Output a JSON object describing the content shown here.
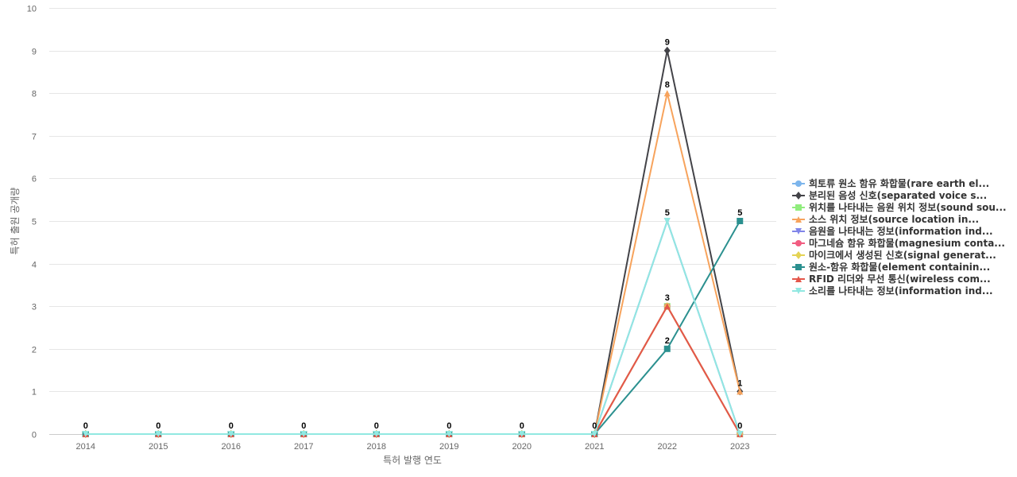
{
  "chart_data": {
    "type": "line",
    "title": "",
    "xlabel": "특허 발행 연도",
    "ylabel": "특허 출원 공개량",
    "ylim": [
      0,
      10
    ],
    "yticks": [
      0,
      1,
      2,
      3,
      4,
      5,
      6,
      7,
      8,
      9,
      10
    ],
    "x": [
      "2014",
      "2015",
      "2016",
      "2017",
      "2018",
      "2019",
      "2020",
      "2021",
      "2022",
      "2023"
    ],
    "grid": true,
    "legend_position": "right",
    "series": [
      {
        "name": "희토류 원소 함유 화합물(rare earth el...",
        "color": "#7cb5ec",
        "marker": "circle",
        "values": [
          0,
          0,
          0,
          0,
          0,
          0,
          0,
          0,
          3,
          0
        ]
      },
      {
        "name": "분리된 음성 신호(separated voice s...",
        "color": "#434348",
        "marker": "diamond",
        "values": [
          0,
          0,
          0,
          0,
          0,
          0,
          0,
          0,
          9,
          1
        ]
      },
      {
        "name": "위치를 나타내는 음원 위치 정보(sound sou...",
        "color": "#90ed7d",
        "marker": "square",
        "values": [
          0,
          0,
          0,
          0,
          0,
          0,
          0,
          0,
          3,
          0
        ]
      },
      {
        "name": "소스 위치 정보(source location in...",
        "color": "#f7a35c",
        "marker": "triangle",
        "values": [
          0,
          0,
          0,
          0,
          0,
          0,
          0,
          0,
          8,
          1
        ]
      },
      {
        "name": "음원을 나타내는 정보(information ind...",
        "color": "#8085e9",
        "marker": "triangle-down",
        "values": [
          0,
          0,
          0,
          0,
          0,
          0,
          0,
          0,
          5,
          0
        ]
      },
      {
        "name": "마그네슘 함유 화합물(magnesium conta...",
        "color": "#f15c80",
        "marker": "circle",
        "values": [
          0,
          0,
          0,
          0,
          0,
          0,
          0,
          0,
          3,
          0
        ]
      },
      {
        "name": "마이크에서 생성된 신호(signal generat...",
        "color": "#e4d354",
        "marker": "diamond",
        "values": [
          0,
          0,
          0,
          0,
          0,
          0,
          0,
          0,
          3,
          0
        ]
      },
      {
        "name": "원소-함유 화합물(element containin...",
        "color": "#2b908f",
        "marker": "square",
        "values": [
          0,
          0,
          0,
          0,
          0,
          0,
          0,
          0,
          2,
          5
        ]
      },
      {
        "name": "RFID 리더와 무선 통신(wireless com...",
        "color": "#e4564a",
        "marker": "triangle",
        "values": [
          0,
          0,
          0,
          0,
          0,
          0,
          0,
          0,
          3,
          0
        ]
      },
      {
        "name": "소리를 나타내는 정보(information ind...",
        "color": "#91e8e1",
        "marker": "triangle-down",
        "values": [
          0,
          0,
          0,
          0,
          0,
          0,
          0,
          0,
          5,
          0
        ]
      }
    ],
    "data_labels": [
      {
        "x": "2014",
        "text": "0"
      },
      {
        "x": "2015",
        "text": "0"
      },
      {
        "x": "2016",
        "text": "0"
      },
      {
        "x": "2017",
        "text": "0"
      },
      {
        "x": "2018",
        "text": "0"
      },
      {
        "x": "2019",
        "text": "0"
      },
      {
        "x": "2020",
        "text": "0"
      },
      {
        "x": "2021",
        "text": "0"
      },
      {
        "x": "2022",
        "text": "9"
      },
      {
        "x": "2022",
        "text": "8"
      },
      {
        "x": "2022",
        "text": "5"
      },
      {
        "x": "2022",
        "text": "3"
      },
      {
        "x": "2022",
        "text": "2"
      },
      {
        "x": "2023",
        "text": "5"
      },
      {
        "x": "2023",
        "text": "1"
      },
      {
        "x": "2023",
        "text": "0"
      }
    ]
  }
}
